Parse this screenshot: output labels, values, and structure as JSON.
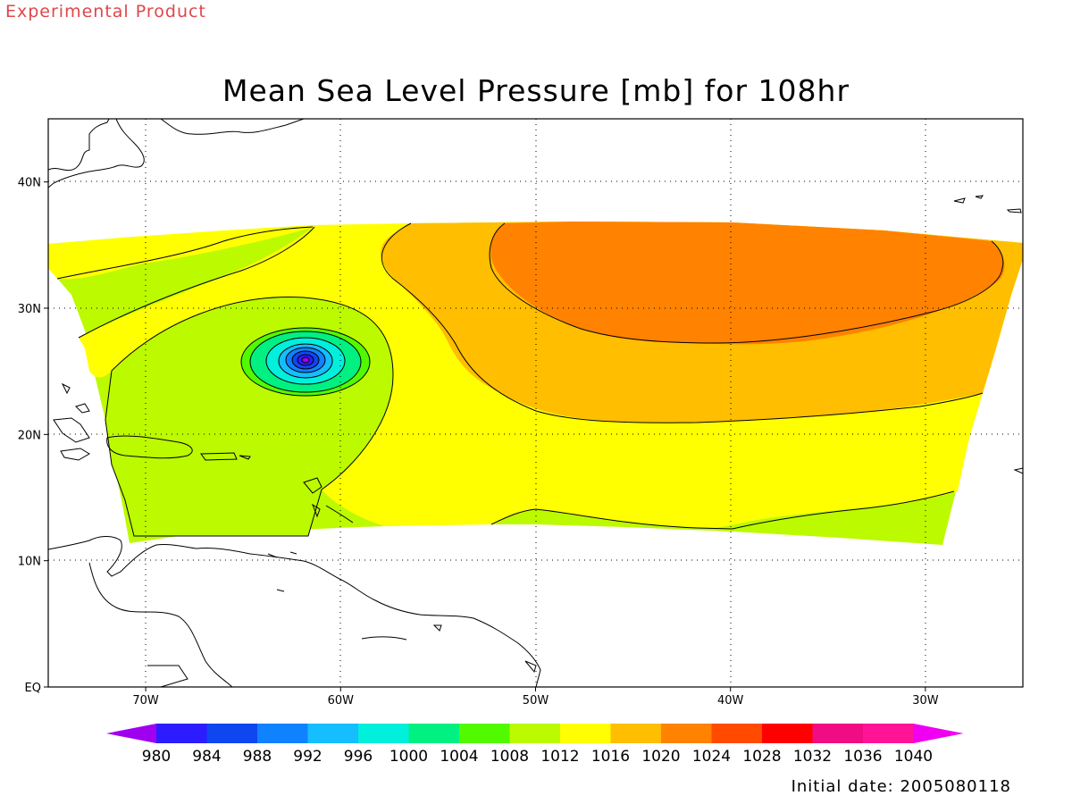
{
  "header": {
    "tag": "Experimental Product",
    "title": "Mean Sea Level Pressure [mb] for 108hr"
  },
  "footer": {
    "initial_date": "Initial date: 2005080118"
  },
  "map": {
    "lon_range": [
      -75,
      -25
    ],
    "lat_range": [
      0,
      45
    ],
    "lon_ticks": [
      {
        "value": -70,
        "label": "70W"
      },
      {
        "value": -60,
        "label": "60W"
      },
      {
        "value": -50,
        "label": "50W"
      },
      {
        "value": -40,
        "label": "40W"
      },
      {
        "value": -30,
        "label": "30W"
      }
    ],
    "lat_ticks": [
      {
        "value": 40,
        "label": "40N"
      },
      {
        "value": 30,
        "label": "30N"
      },
      {
        "value": 20,
        "label": "20N"
      },
      {
        "value": 10,
        "label": "10N"
      },
      {
        "value": 0,
        "label": "EQ"
      }
    ],
    "gridlines": "dotted",
    "storm_center": {
      "lon": -61.8,
      "lat": 25.8
    }
  },
  "colorbar": {
    "labels": [
      "980",
      "984",
      "988",
      "992",
      "996",
      "1000",
      "1004",
      "1008",
      "1012",
      "1016",
      "1020",
      "1024",
      "1028",
      "1032",
      "1036",
      "1040"
    ],
    "colors": [
      "#a000f0",
      "#2c1cff",
      "#1046f0",
      "#0f82ff",
      "#14beff",
      "#00f0dc",
      "#00f082",
      "#52fa00",
      "#bcfa00",
      "#ffff00",
      "#ffbe00",
      "#ff8200",
      "#ff4a00",
      "#ff0000",
      "#f00c82",
      "#ff1496",
      "#f000f0"
    ]
  },
  "colors": {
    "fill_1008": "#bcfa00",
    "fill_1012": "#ffff00",
    "fill_1016": "#ffbe00",
    "fill_1020": "#ff8200",
    "tag_red": "#e0464a"
  }
}
